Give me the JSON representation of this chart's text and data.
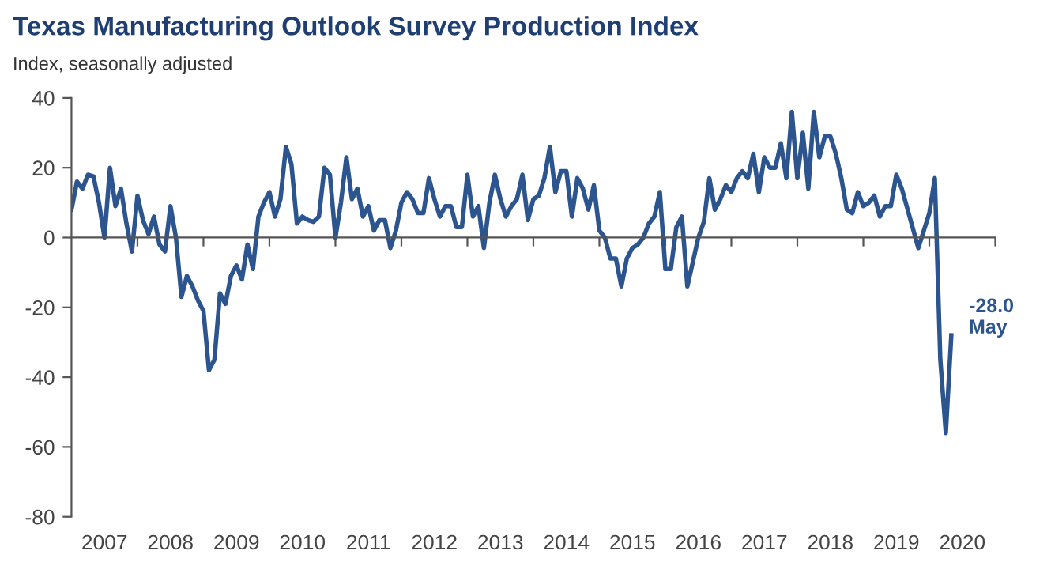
{
  "chart_data": {
    "type": "line",
    "title": "Texas Manufacturing Outlook Survey Production Index",
    "subtitle": "Index, seasonally adjusted",
    "series": [
      {
        "color": "#2c5590",
        "x": [
          "2007-01",
          "2007-02",
          "2007-03",
          "2007-04",
          "2007-05",
          "2007-06",
          "2007-07",
          "2007-08",
          "2007-09",
          "2007-10",
          "2007-11",
          "2007-12",
          "2008-01",
          "2008-02",
          "2008-03",
          "2008-04",
          "2008-05",
          "2008-06",
          "2008-07",
          "2008-08",
          "2008-09",
          "2008-10",
          "2008-11",
          "2008-12",
          "2009-01",
          "2009-02",
          "2009-03",
          "2009-04",
          "2009-05",
          "2009-06",
          "2009-07",
          "2009-08",
          "2009-09",
          "2009-10",
          "2009-11",
          "2009-12",
          "2010-01",
          "2010-02",
          "2010-03",
          "2010-04",
          "2010-05",
          "2010-06",
          "2010-07",
          "2010-08",
          "2010-09",
          "2010-10",
          "2010-11",
          "2010-12",
          "2011-01",
          "2011-02",
          "2011-03",
          "2011-04",
          "2011-05",
          "2011-06",
          "2011-07",
          "2011-08",
          "2011-09",
          "2011-10",
          "2011-11",
          "2011-12",
          "2012-01",
          "2012-02",
          "2012-03",
          "2012-04",
          "2012-05",
          "2012-06",
          "2012-07",
          "2012-08",
          "2012-09",
          "2012-10",
          "2012-11",
          "2012-12",
          "2013-01",
          "2013-02",
          "2013-03",
          "2013-04",
          "2013-05",
          "2013-06",
          "2013-07",
          "2013-08",
          "2013-09",
          "2013-10",
          "2013-11",
          "2013-12",
          "2014-01",
          "2014-02",
          "2014-03",
          "2014-04",
          "2014-05",
          "2014-06",
          "2014-07",
          "2014-08",
          "2014-09",
          "2014-10",
          "2014-11",
          "2014-12",
          "2015-01",
          "2015-02",
          "2015-03",
          "2015-04",
          "2015-05",
          "2015-06",
          "2015-07",
          "2015-08",
          "2015-09",
          "2015-10",
          "2015-11",
          "2015-12",
          "2016-01",
          "2016-02",
          "2016-03",
          "2016-04",
          "2016-05",
          "2016-06",
          "2016-07",
          "2016-08",
          "2016-09",
          "2016-10",
          "2016-11",
          "2016-12",
          "2017-01",
          "2017-02",
          "2017-03",
          "2017-04",
          "2017-05",
          "2017-06",
          "2017-07",
          "2017-08",
          "2017-09",
          "2017-10",
          "2017-11",
          "2017-12",
          "2018-01",
          "2018-02",
          "2018-03",
          "2018-04",
          "2018-05",
          "2018-06",
          "2018-07",
          "2018-08",
          "2018-09",
          "2018-10",
          "2018-11",
          "2018-12",
          "2019-01",
          "2019-02",
          "2019-03",
          "2019-04",
          "2019-05",
          "2019-06",
          "2019-07",
          "2019-08",
          "2019-11",
          "2020-01",
          "2020-02",
          "2020-03",
          "2020-04",
          "2020-05"
        ],
        "values": [
          8,
          16,
          14,
          18,
          17.5,
          10,
          0,
          20,
          9,
          14,
          4,
          -4,
          12,
          5,
          1,
          6,
          -2,
          -4,
          9,
          0,
          -17,
          -11,
          -14,
          -18,
          -21,
          -38,
          -35,
          -16,
          -19,
          -11,
          -8,
          -12,
          -2,
          -9,
          6,
          10,
          13,
          6,
          11,
          26,
          21,
          4,
          6,
          5,
          4.5,
          6,
          20,
          18,
          0,
          10,
          23,
          11,
          14,
          6,
          9,
          2,
          5,
          5,
          -3,
          2,
          10,
          13,
          11,
          7,
          7,
          17,
          11,
          6,
          9,
          9,
          3,
          3,
          18,
          6,
          9,
          -3,
          10,
          18,
          11,
          6,
          9,
          11,
          18,
          5,
          11,
          12,
          17,
          26,
          13,
          19,
          19,
          6,
          17,
          14,
          8,
          15,
          2,
          0,
          -6,
          -6,
          -14,
          -6,
          -3,
          -2,
          0,
          4,
          6,
          13,
          -9,
          -9,
          3,
          6,
          -14,
          -7,
          0,
          4.5,
          17,
          8,
          11,
          15,
          13,
          17,
          19,
          17,
          24,
          13,
          23,
          20,
          20,
          27,
          17,
          36,
          17,
          30,
          14,
          36,
          23,
          29,
          29,
          24,
          17,
          8,
          7,
          13,
          9,
          10,
          12,
          6,
          9,
          9,
          18,
          14,
          -3,
          7,
          17,
          -35,
          -56,
          -28
        ]
      }
    ],
    "annotations": [
      {
        "text": "-28.0\nMay",
        "x": "2020-05",
        "y": -28
      }
    ],
    "xlim": [
      "2007-01",
      "2021-01"
    ],
    "xticks": [
      {
        "value": "2008-01",
        "label": null
      },
      {
        "value": "2009-01",
        "label": null
      },
      {
        "value": "2010-01",
        "label": null
      },
      {
        "value": "2011-01",
        "label": null
      },
      {
        "value": "2012-01",
        "label": null
      },
      {
        "value": "2013-01",
        "label": null
      },
      {
        "value": "2014-01",
        "label": null
      },
      {
        "value": "2015-01",
        "label": null
      },
      {
        "value": "2016-01",
        "label": null
      },
      {
        "value": "2017-01",
        "label": null
      },
      {
        "value": "2018-01",
        "label": null
      },
      {
        "value": "2019-01",
        "label": null
      },
      {
        "value": "2020-01",
        "label": null
      },
      {
        "value": "2021-01",
        "label": null
      },
      {
        "value": "2007-07",
        "label": "2007"
      },
      {
        "value": "2008-07",
        "label": "2008"
      },
      {
        "value": "2009-07",
        "label": "2009"
      },
      {
        "value": "2010-07",
        "label": "2010"
      },
      {
        "value": "2011-07",
        "label": "2011"
      },
      {
        "value": "2012-07",
        "label": "2012"
      },
      {
        "value": "2013-07",
        "label": "2013"
      },
      {
        "value": "2014-07",
        "label": "2014"
      },
      {
        "value": "2015-07",
        "label": "2015"
      },
      {
        "value": "2016-07",
        "label": "2016"
      },
      {
        "value": "2017-07",
        "label": "2017"
      },
      {
        "value": "2018-07",
        "label": "2018"
      },
      {
        "value": "2019-07",
        "label": "2019"
      },
      {
        "value": "2020-07",
        "label": "2020"
      }
    ],
    "ylim": [
      -80,
      40
    ],
    "yticks": [
      -80,
      -60,
      -40,
      -20,
      0,
      20,
      40
    ],
    "ref_lines": [
      {
        "axis": "y",
        "value": 0,
        "color": "#555555"
      }
    ],
    "grid": false,
    "legend": false,
    "marker": "none",
    "line_style": "solid"
  }
}
